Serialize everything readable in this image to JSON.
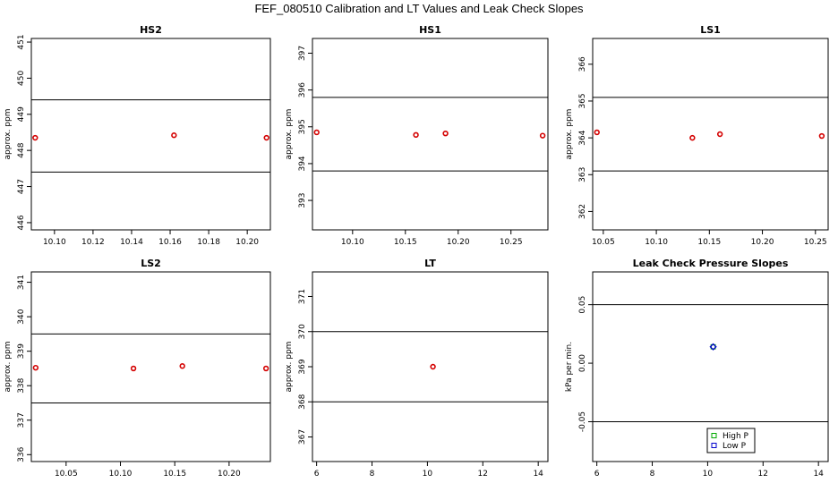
{
  "title": "FEF_080510  Calibration and LT Values and Leak Check Slopes",
  "chart_data": [
    {
      "type": "scatter",
      "title": "HS2",
      "ylabel": "approx. ppm",
      "xlim": [
        10.088,
        10.212
      ],
      "ylim": [
        445.8,
        451.1
      ],
      "xticks": [
        10.1,
        10.12,
        10.14,
        10.16,
        10.18,
        10.2
      ],
      "xtick_labels": [
        "10.10",
        "10.12",
        "10.14",
        "10.16",
        "10.18",
        "10.20"
      ],
      "yticks": [
        446,
        447,
        448,
        449,
        450,
        451
      ],
      "ytick_labels": [
        "446",
        "447",
        "448",
        "449",
        "450",
        "451"
      ],
      "hlines": [
        449.4,
        447.4
      ],
      "points": [
        {
          "x": 10.09,
          "y": 448.35
        },
        {
          "x": 10.162,
          "y": 448.42
        },
        {
          "x": 10.21,
          "y": 448.35
        }
      ],
      "point_color": "#d40000"
    },
    {
      "type": "scatter",
      "title": "HS1",
      "ylabel": "approx. ppm",
      "xlim": [
        10.062,
        10.285
      ],
      "ylim": [
        392.2,
        397.4
      ],
      "xticks": [
        10.1,
        10.15,
        10.2,
        10.25
      ],
      "xtick_labels": [
        "10.10",
        "10.15",
        "10.20",
        "10.25"
      ],
      "yticks": [
        393,
        394,
        395,
        396,
        397
      ],
      "ytick_labels": [
        "393",
        "394",
        "395",
        "396",
        "397"
      ],
      "hlines": [
        395.8,
        393.8
      ],
      "points": [
        {
          "x": 10.066,
          "y": 394.85
        },
        {
          "x": 10.16,
          "y": 394.78
        },
        {
          "x": 10.188,
          "y": 394.82
        },
        {
          "x": 10.28,
          "y": 394.76
        }
      ],
      "point_color": "#d40000"
    },
    {
      "type": "scatter",
      "title": "LS1",
      "ylabel": "approx. ppm",
      "xlim": [
        10.04,
        10.262
      ],
      "ylim": [
        361.5,
        366.7
      ],
      "xticks": [
        10.05,
        10.1,
        10.15,
        10.2,
        10.25
      ],
      "xtick_labels": [
        "10.05",
        "10.10",
        "10.15",
        "10.20",
        "10.25"
      ],
      "yticks": [
        362,
        363,
        364,
        365,
        366
      ],
      "ytick_labels": [
        "362",
        "363",
        "364",
        "365",
        "366"
      ],
      "hlines": [
        365.1,
        363.1
      ],
      "points": [
        {
          "x": 10.044,
          "y": 364.15
        },
        {
          "x": 10.134,
          "y": 364.0
        },
        {
          "x": 10.16,
          "y": 364.1
        },
        {
          "x": 10.256,
          "y": 364.05
        }
      ],
      "point_color": "#d40000"
    },
    {
      "type": "scatter",
      "title": "LS2",
      "ylabel": "approx. ppm",
      "xlim": [
        10.018,
        10.238
      ],
      "ylim": [
        335.8,
        341.3
      ],
      "xticks": [
        10.05,
        10.1,
        10.15,
        10.2
      ],
      "xtick_labels": [
        "10.05",
        "10.10",
        "10.15",
        "10.20"
      ],
      "yticks": [
        336,
        337,
        338,
        339,
        340,
        341
      ],
      "ytick_labels": [
        "336",
        "337",
        "338",
        "339",
        "340",
        "341"
      ],
      "hlines": [
        339.5,
        337.5
      ],
      "points": [
        {
          "x": 10.022,
          "y": 338.52
        },
        {
          "x": 10.112,
          "y": 338.5
        },
        {
          "x": 10.157,
          "y": 338.57
        },
        {
          "x": 10.234,
          "y": 338.5
        }
      ],
      "point_color": "#d40000"
    },
    {
      "type": "scatter",
      "title": "LT",
      "ylabel": "approx. ppm",
      "xlim": [
        5.85,
        14.35
      ],
      "ylim": [
        366.3,
        371.7
      ],
      "xticks": [
        6,
        8,
        10,
        12,
        14
      ],
      "xtick_labels": [
        "6",
        "8",
        "10",
        "12",
        "14"
      ],
      "yticks": [
        367,
        368,
        369,
        370,
        371
      ],
      "ytick_labels": [
        "367",
        "368",
        "369",
        "370",
        "371"
      ],
      "hlines": [
        370.0,
        368.0
      ],
      "points": [
        {
          "x": 10.2,
          "y": 369.0
        }
      ],
      "point_color": "#d40000"
    },
    {
      "type": "scatter",
      "title": "Leak Check Pressure Slopes",
      "ylabel": "kPa per min.",
      "xlim": [
        5.85,
        14.35
      ],
      "ylim": [
        -0.084,
        0.078
      ],
      "xticks": [
        6,
        8,
        10,
        12,
        14
      ],
      "xtick_labels": [
        "6",
        "8",
        "10",
        "12",
        "14"
      ],
      "yticks": [
        -0.05,
        0.0,
        0.05
      ],
      "ytick_labels": [
        "-0.05",
        "0.00",
        "0.05"
      ],
      "hlines": [
        0.05,
        -0.05
      ],
      "series": [
        {
          "name": "High P",
          "color": "#00aa00",
          "points": [
            {
              "x": 10.2,
              "y": 0.014
            }
          ]
        },
        {
          "name": "Low P",
          "color": "#0000cc",
          "points": [
            {
              "x": 10.2,
              "y": 0.014
            }
          ]
        }
      ],
      "legend": "bottom-center"
    }
  ]
}
